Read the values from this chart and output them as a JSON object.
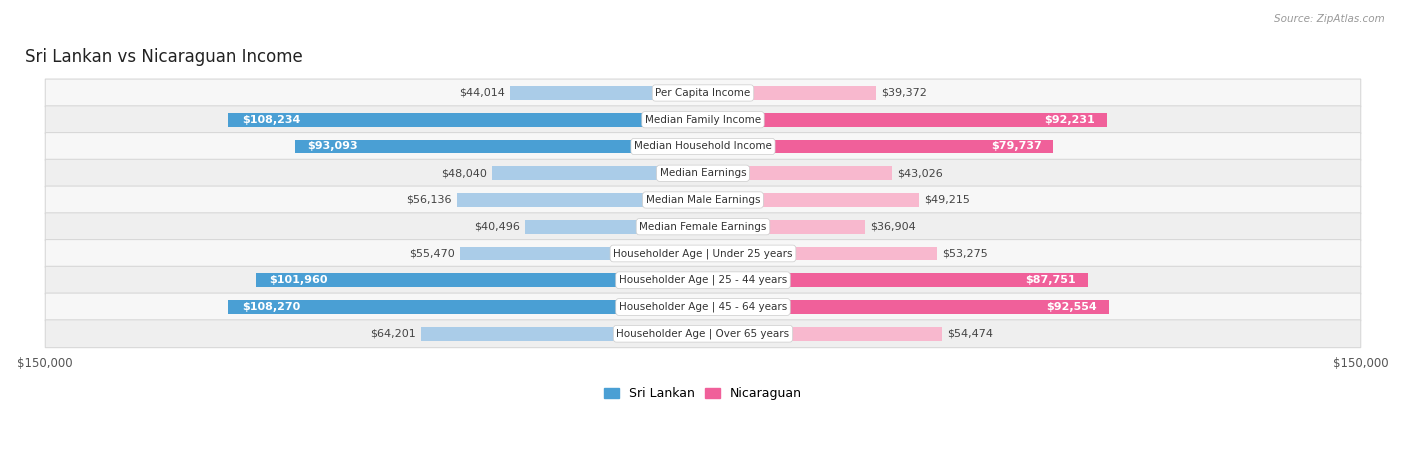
{
  "title": "Sri Lankan vs Nicaraguan Income",
  "source": "Source: ZipAtlas.com",
  "categories": [
    "Per Capita Income",
    "Median Family Income",
    "Median Household Income",
    "Median Earnings",
    "Median Male Earnings",
    "Median Female Earnings",
    "Householder Age | Under 25 years",
    "Householder Age | 25 - 44 years",
    "Householder Age | 45 - 64 years",
    "Householder Age | Over 65 years"
  ],
  "sri_lankan": [
    44014,
    108234,
    93093,
    48040,
    56136,
    40496,
    55470,
    101960,
    108270,
    64201
  ],
  "nicaraguan": [
    39372,
    92231,
    79737,
    43026,
    49215,
    36904,
    53275,
    87751,
    92554,
    54474
  ],
  "sri_lankan_labels": [
    "$44,014",
    "$108,234",
    "$93,093",
    "$48,040",
    "$56,136",
    "$40,496",
    "$55,470",
    "$101,960",
    "$108,270",
    "$64,201"
  ],
  "nicaraguan_labels": [
    "$39,372",
    "$92,231",
    "$79,737",
    "$43,026",
    "$49,215",
    "$36,904",
    "$53,275",
    "$87,751",
    "$92,554",
    "$54,474"
  ],
  "max_val": 150000,
  "sl_light": "#aacce8",
  "sl_dark": "#4a9fd4",
  "nic_light": "#f8b8ce",
  "nic_dark": "#f0609a",
  "bg_color": "#ffffff",
  "row_even": "#f7f7f7",
  "row_odd": "#efefef",
  "label_fontsize": 8.0,
  "cat_fontsize": 7.5,
  "title_fontsize": 12,
  "bar_height": 0.52,
  "sl_threshold": 72000,
  "nic_threshold": 72000
}
